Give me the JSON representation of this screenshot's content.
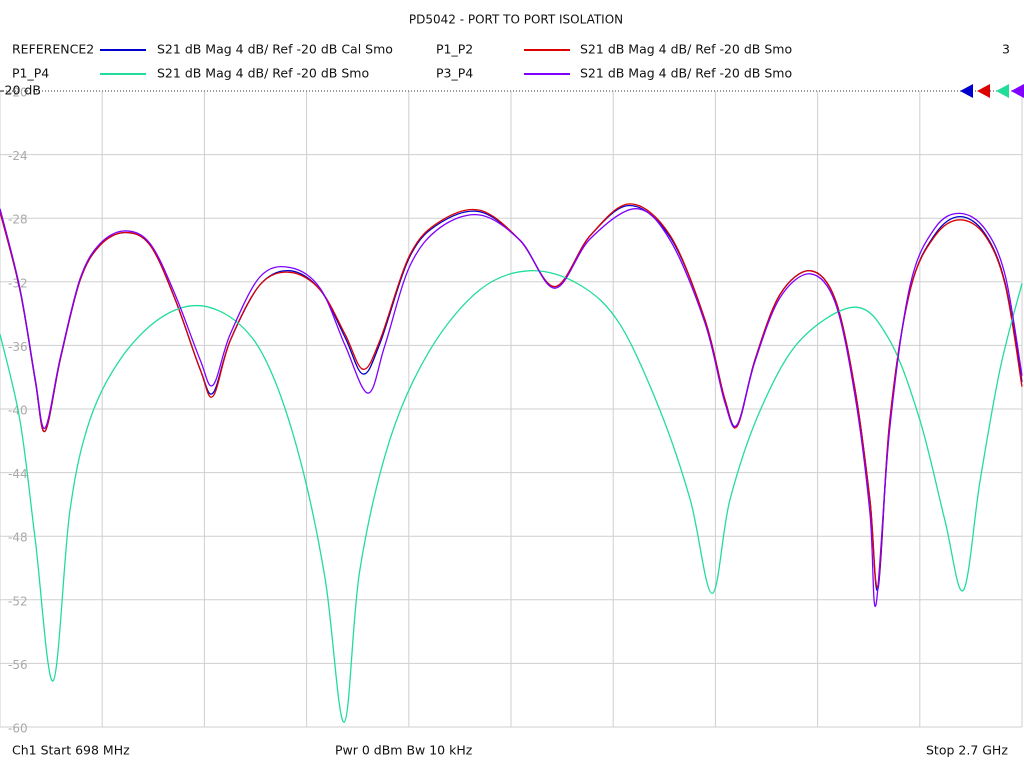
{
  "chart_data": {
    "type": "line",
    "title": "PD5042 - PORT TO PORT ISOLATION",
    "ref_label": "-20 dB",
    "trace_count": "3",
    "footer": [
      "Ch1  Start  698 MHz",
      "Pwr  0 dBm  Bw  10 kHz",
      "Stop  2.7 GHz"
    ],
    "xlim": [
      698,
      2700
    ],
    "x_divisions": 10,
    "ylim": [
      -60,
      -20
    ],
    "yticks": [
      -20,
      -24,
      -28,
      -32,
      -36,
      -40,
      -44,
      -48,
      -52,
      -56,
      -60
    ],
    "grid": true,
    "series": [
      {
        "name": "REFERENCE2",
        "description": "S21  dB Mag  4 dB/ Ref -20 dB  Cal Smo",
        "color": "#0000cc",
        "x": [
          698,
          737,
          767,
          786,
          816,
          855,
          894,
          943,
          992,
          1041,
          1090,
          1115,
          1149,
          1207,
          1266,
          1325,
          1374,
          1409,
          1442,
          1501,
          1560,
          1638,
          1717,
          1785,
          1854,
          1932,
          2011,
          2079,
          2118,
          2142,
          2177,
          2226,
          2285,
          2334,
          2373,
          2402,
          2418,
          2441,
          2481,
          2530,
          2579,
          2628,
          2667,
          2700
        ],
        "values": [
          -27.6,
          -32.5,
          -38.2,
          -41.4,
          -36.9,
          -31.9,
          -29.7,
          -28.9,
          -29.7,
          -33.1,
          -37.5,
          -39.0,
          -35.7,
          -32.2,
          -31.3,
          -32.5,
          -35.5,
          -37.8,
          -35.9,
          -30.4,
          -28.3,
          -27.6,
          -29.4,
          -32.3,
          -29.1,
          -27.2,
          -29.2,
          -34.4,
          -39.4,
          -41.0,
          -36.9,
          -32.8,
          -31.3,
          -33.1,
          -38.8,
          -45.7,
          -51.3,
          -40.8,
          -32.5,
          -29.0,
          -27.9,
          -29.0,
          -32.1,
          -38.3
        ]
      },
      {
        "name": "P1_P2",
        "description": "S21  dB Mag  4 dB/ Ref -20 dB  Smo",
        "color": "#dd0000",
        "x": [
          698,
          737,
          767,
          786,
          816,
          855,
          894,
          943,
          992,
          1041,
          1090,
          1115,
          1149,
          1207,
          1266,
          1325,
          1374,
          1409,
          1442,
          1501,
          1560,
          1638,
          1717,
          1785,
          1854,
          1932,
          2011,
          2079,
          2118,
          2142,
          2177,
          2226,
          2285,
          2334,
          2373,
          2402,
          2418,
          2441,
          2481,
          2530,
          2579,
          2628,
          2667,
          2700
        ],
        "values": [
          -27.6,
          -32.5,
          -38.2,
          -41.4,
          -36.9,
          -31.9,
          -29.7,
          -28.9,
          -29.7,
          -33.1,
          -37.5,
          -39.2,
          -35.7,
          -32.2,
          -31.4,
          -32.5,
          -35.3,
          -37.5,
          -35.7,
          -30.3,
          -28.2,
          -27.5,
          -29.4,
          -32.3,
          -29.1,
          -27.1,
          -29.1,
          -34.4,
          -39.4,
          -41.1,
          -36.9,
          -32.8,
          -31.3,
          -33.1,
          -38.8,
          -45.7,
          -51.1,
          -40.7,
          -32.5,
          -29.1,
          -28.1,
          -29.1,
          -32.2,
          -38.6
        ]
      },
      {
        "name": "P1_P4",
        "description": "S21  dB Mag  4 dB/ Ref -20 dB  Smo",
        "color": "#22dd99",
        "x": [
          698,
          737,
          767,
          802,
          835,
          874,
          933,
          1011,
          1090,
          1168,
          1227,
          1286,
          1335,
          1372,
          1403,
          1462,
          1540,
          1638,
          1736,
          1834,
          1913,
          1991,
          2050,
          2093,
          2128,
          2187,
          2265,
          2373,
          2441,
          2500,
          2549,
          2585,
          2618,
          2657,
          2700
        ],
        "values": [
          -35.3,
          -40.7,
          -48.2,
          -57.1,
          -46.4,
          -40.7,
          -36.9,
          -34.3,
          -33.5,
          -34.7,
          -37.5,
          -43.2,
          -50.7,
          -59.7,
          -50.1,
          -41.9,
          -36.3,
          -32.5,
          -31.3,
          -32.2,
          -34.7,
          -40.1,
          -45.7,
          -51.6,
          -45.7,
          -40.1,
          -35.7,
          -33.6,
          -35.7,
          -40.7,
          -47.0,
          -51.4,
          -44.5,
          -37.5,
          -32.1
        ]
      },
      {
        "name": "P3_P4",
        "description": "S21  dB Mag  4 dB/ Ref -20 dB  Smo",
        "color": "#7f00ff",
        "x": [
          698,
          737,
          767,
          786,
          816,
          855,
          894,
          943,
          992,
          1041,
          1090,
          1115,
          1149,
          1207,
          1266,
          1325,
          1374,
          1419,
          1452,
          1501,
          1560,
          1638,
          1717,
          1785,
          1854,
          1944,
          2011,
          2079,
          2118,
          2142,
          2177,
          2226,
          2285,
          2334,
          2373,
          2402,
          2414,
          2441,
          2481,
          2530,
          2579,
          2628,
          2667,
          2700
        ],
        "values": [
          -27.4,
          -32.4,
          -38.1,
          -41.2,
          -36.8,
          -31.8,
          -29.6,
          -28.8,
          -29.6,
          -32.8,
          -36.9,
          -38.5,
          -35.3,
          -31.7,
          -31.1,
          -32.4,
          -36.0,
          -39.0,
          -36.0,
          -31.0,
          -28.6,
          -27.8,
          -29.4,
          -32.4,
          -29.3,
          -27.4,
          -29.4,
          -34.6,
          -39.6,
          -41.0,
          -37.0,
          -33.0,
          -31.5,
          -33.3,
          -39.2,
          -46.5,
          -52.3,
          -41.2,
          -32.2,
          -28.6,
          -27.7,
          -28.7,
          -31.6,
          -37.9
        ]
      }
    ]
  }
}
